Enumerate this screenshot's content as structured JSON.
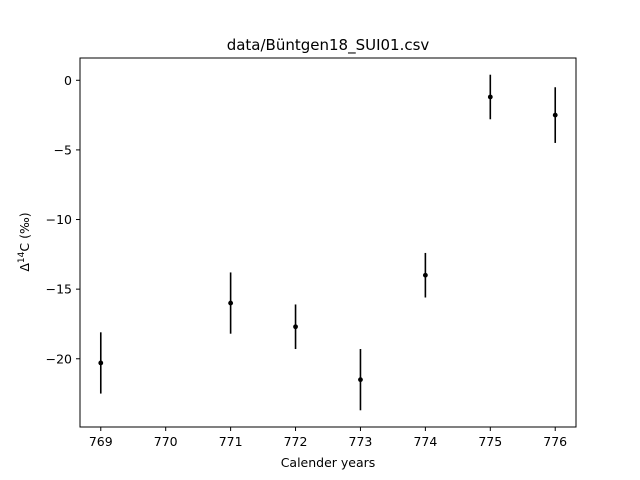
{
  "chart_data": {
    "type": "scatter",
    "title": "data/Büntgen18_SUI01.csv",
    "xlabel": "Calender years",
    "ylabel_parts": {
      "delta": "Δ",
      "sup": "14",
      "rest": "C (‰)"
    },
    "xlim": [
      768.68,
      776.32
    ],
    "ylim": [
      -24.9,
      1.6
    ],
    "x_ticks": [
      769,
      770,
      771,
      772,
      773,
      774,
      775,
      776
    ],
    "x_tick_labels": [
      "769",
      "770",
      "771",
      "772",
      "773",
      "774",
      "775",
      "776"
    ],
    "y_ticks": [
      0,
      -5,
      -10,
      -15,
      -20
    ],
    "y_tick_labels": [
      "0",
      "−5",
      "−10",
      "−15",
      "−20"
    ],
    "grid": false,
    "legend": "none",
    "series": [
      {
        "marker": "point",
        "color": "#000000",
        "points": [
          {
            "x": 769,
            "y": -20.3,
            "yerr": 2.2
          },
          {
            "x": 771,
            "y": -16.0,
            "yerr": 2.2
          },
          {
            "x": 772,
            "y": -17.7,
            "yerr": 1.6
          },
          {
            "x": 773,
            "y": -21.5,
            "yerr": 2.2
          },
          {
            "x": 774,
            "y": -14.0,
            "yerr": 1.6
          },
          {
            "x": 775,
            "y": -1.2,
            "yerr": 1.6
          },
          {
            "x": 776,
            "y": -2.5,
            "yerr": 2.0
          }
        ]
      }
    ]
  }
}
